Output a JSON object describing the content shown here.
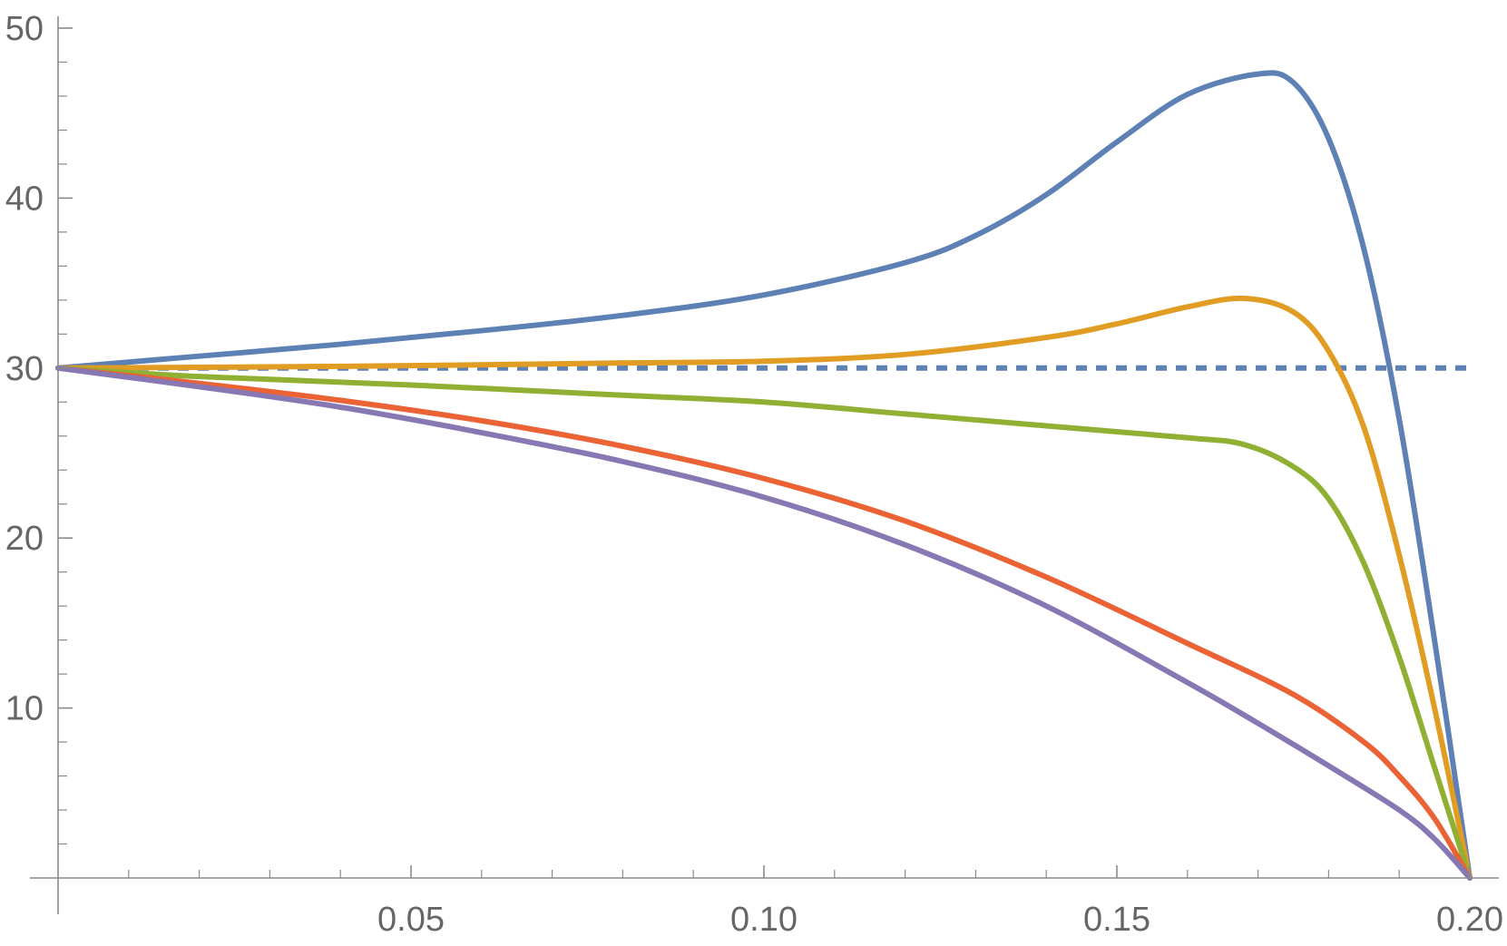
{
  "chart_data": {
    "type": "line",
    "title": "",
    "xlabel": "",
    "ylabel": "",
    "xlim": [
      0,
      0.2
    ],
    "ylim": [
      0,
      50
    ],
    "grid": false,
    "legend": "none",
    "x_ticks": [
      0.05,
      0.1,
      0.15,
      0.2
    ],
    "x_tick_labels": [
      "0.05",
      "0.10",
      "0.15",
      "0.20"
    ],
    "y_ticks": [
      10,
      20,
      30,
      40,
      50
    ],
    "y_tick_labels": [
      "10",
      "20",
      "30",
      "40",
      "50"
    ],
    "reference_line": {
      "y": 30,
      "style": "dashed",
      "color": "#5E81B5"
    },
    "series": [
      {
        "color": "#5E81B5",
        "points": [
          [
            0,
            30
          ],
          [
            0.02,
            30.7
          ],
          [
            0.04,
            31.4
          ],
          [
            0.06,
            32.2
          ],
          [
            0.08,
            33.1
          ],
          [
            0.1,
            34.3
          ],
          [
            0.12,
            36.2
          ],
          [
            0.13,
            37.8
          ],
          [
            0.14,
            40.2
          ],
          [
            0.15,
            43.3
          ],
          [
            0.16,
            46.1
          ],
          [
            0.17,
            47.3
          ],
          [
            0.175,
            46.8
          ],
          [
            0.18,
            43.5
          ],
          [
            0.185,
            37.0
          ],
          [
            0.19,
            27.0
          ],
          [
            0.195,
            14.0
          ],
          [
            0.2,
            0
          ]
        ]
      },
      {
        "color": "#E19C24",
        "points": [
          [
            0,
            30
          ],
          [
            0.04,
            30.1
          ],
          [
            0.08,
            30.3
          ],
          [
            0.1,
            30.4
          ],
          [
            0.12,
            30.8
          ],
          [
            0.14,
            31.8
          ],
          [
            0.15,
            32.6
          ],
          [
            0.16,
            33.6
          ],
          [
            0.168,
            34.1
          ],
          [
            0.175,
            33.3
          ],
          [
            0.18,
            31.0
          ],
          [
            0.185,
            26.5
          ],
          [
            0.19,
            19.0
          ],
          [
            0.195,
            10.0
          ],
          [
            0.2,
            0
          ]
        ]
      },
      {
        "color": "#8FB032",
        "points": [
          [
            0,
            30
          ],
          [
            0.02,
            29.5
          ],
          [
            0.05,
            29.0
          ],
          [
            0.08,
            28.4
          ],
          [
            0.1,
            28.0
          ],
          [
            0.12,
            27.3
          ],
          [
            0.14,
            26.6
          ],
          [
            0.16,
            25.9
          ],
          [
            0.168,
            25.5
          ],
          [
            0.175,
            24.2
          ],
          [
            0.18,
            22.3
          ],
          [
            0.185,
            18.5
          ],
          [
            0.19,
            13.0
          ],
          [
            0.195,
            6.5
          ],
          [
            0.2,
            0
          ]
        ]
      },
      {
        "color": "#EB6235",
        "points": [
          [
            0,
            30
          ],
          [
            0.02,
            29.1
          ],
          [
            0.04,
            28.1
          ],
          [
            0.06,
            26.9
          ],
          [
            0.08,
            25.4
          ],
          [
            0.1,
            23.5
          ],
          [
            0.12,
            21.0
          ],
          [
            0.14,
            17.7
          ],
          [
            0.16,
            13.8
          ],
          [
            0.175,
            10.8
          ],
          [
            0.185,
            8.0
          ],
          [
            0.19,
            6.0
          ],
          [
            0.195,
            3.5
          ],
          [
            0.2,
            0
          ]
        ]
      },
      {
        "color": "#8778B3",
        "points": [
          [
            0,
            30
          ],
          [
            0.02,
            28.9
          ],
          [
            0.04,
            27.7
          ],
          [
            0.06,
            26.2
          ],
          [
            0.08,
            24.5
          ],
          [
            0.1,
            22.4
          ],
          [
            0.12,
            19.6
          ],
          [
            0.14,
            16.0
          ],
          [
            0.16,
            11.5
          ],
          [
            0.17,
            9.1
          ],
          [
            0.18,
            6.6
          ],
          [
            0.19,
            4.0
          ],
          [
            0.195,
            2.3
          ],
          [
            0.2,
            0
          ]
        ]
      }
    ]
  }
}
